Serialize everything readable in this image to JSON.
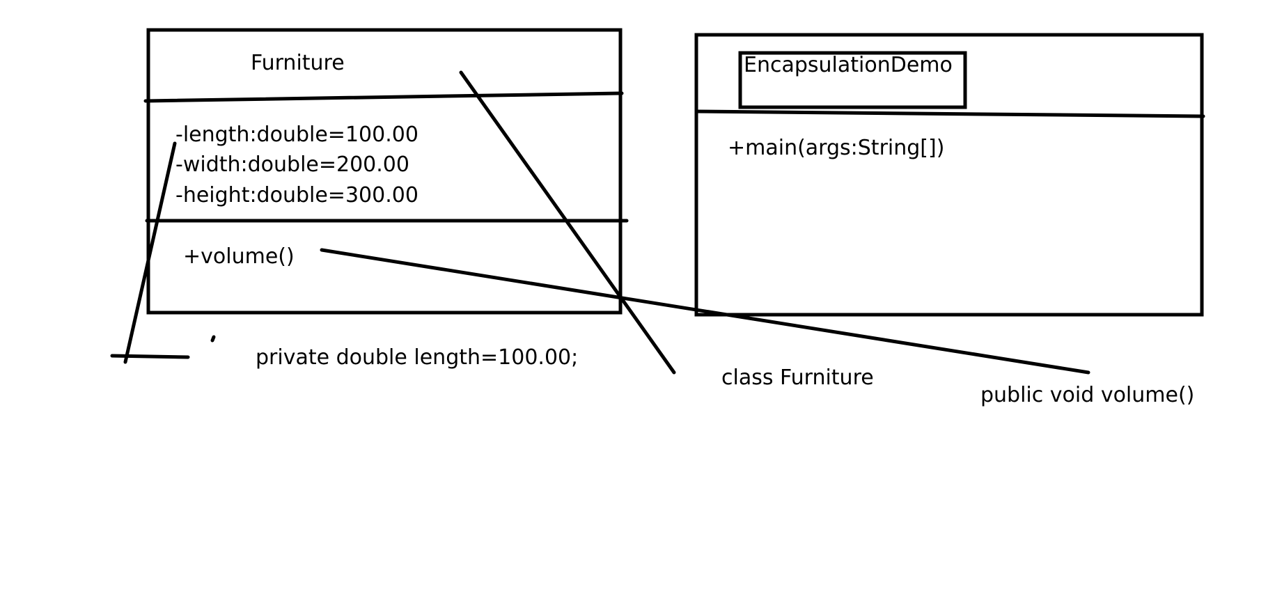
{
  "furniture_class": {
    "name": "Furniture",
    "attributes": [
      "-length:double=100.00",
      "-width:double=200.00",
      "-height:double=300.00"
    ],
    "methods": [
      "+volume()"
    ]
  },
  "demo_class": {
    "name": "EncapsulationDemo",
    "methods": [
      "+main(args:String[])"
    ]
  },
  "annotations": {
    "length_field": "private double length=100.00;",
    "class_decl": "class Furniture",
    "method_decl": "public void volume()"
  },
  "colors": {
    "ink": "#000000",
    "background": "#ffffff"
  }
}
